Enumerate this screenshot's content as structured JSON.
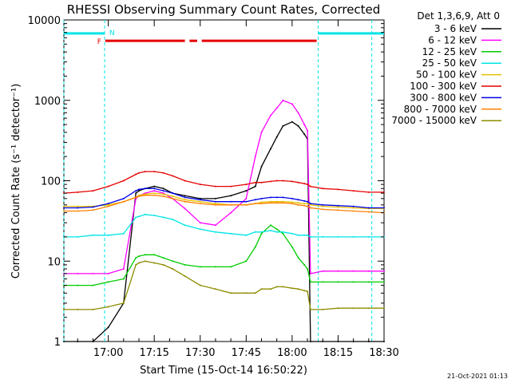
{
  "chart_data": {
    "type": "line",
    "title": "RHESSI Observing Summary Count Rates, Corrected",
    "xlabel": "Start Time (15-Oct-14 16:50:22)",
    "ylabel": "Corrected Count Rate (s⁻¹ detector⁻¹)",
    "x_ticks": [
      "17:00",
      "17:15",
      "17:30",
      "17:45",
      "18:00",
      "18:15",
      "18:30"
    ],
    "x_tick_minutes": [
      10,
      25,
      40,
      55,
      70,
      85,
      100
    ],
    "xlim_minutes": [
      -4.5,
      100
    ],
    "y_ticks": [
      "1",
      "10",
      "100",
      "1000",
      "10000"
    ],
    "y_tick_values": [
      1,
      10,
      100,
      1000,
      10000
    ],
    "ylim": [
      1,
      10000
    ],
    "y_scale": "log",
    "legend_header": "Det 1,3,6,9, Att 0",
    "legend_position": "top-right",
    "x": [
      -4.5,
      0,
      5,
      10,
      15,
      19,
      20,
      22,
      25,
      28,
      31,
      35,
      40,
      45,
      50,
      55,
      58,
      60,
      63,
      65,
      67,
      70,
      72,
      74,
      75,
      76,
      80,
      85,
      90,
      95,
      100
    ],
    "series": [
      {
        "name": "3 - 6 keV",
        "color": "#000000",
        "values": [
          1,
          1,
          1,
          1.5,
          3,
          70,
          75,
          80,
          85,
          80,
          70,
          65,
          60,
          60,
          65,
          75,
          85,
          150,
          250,
          350,
          480,
          540,
          480,
          380,
          330,
          1,
          1,
          1,
          1,
          1,
          1
        ]
      },
      {
        "name": "6 - 12 keV",
        "color": "#ff00ff",
        "values": [
          7,
          7,
          7,
          7,
          8,
          60,
          65,
          70,
          75,
          70,
          60,
          45,
          30,
          28,
          40,
          60,
          200,
          400,
          650,
          800,
          1000,
          900,
          700,
          500,
          420,
          7,
          7.5,
          7.5,
          7.5,
          7.5,
          7.5
        ]
      },
      {
        "name": "12 - 25 keV",
        "color": "#00cc00",
        "values": [
          5,
          5,
          5,
          5.5,
          6,
          11,
          11.5,
          12,
          12,
          11,
          10,
          9,
          8.5,
          8.5,
          8.5,
          10,
          15,
          22,
          28,
          25,
          22,
          15,
          11,
          9,
          8,
          5.5,
          5.5,
          5.5,
          5.5,
          5.5,
          5.5
        ]
      },
      {
        "name": "25 - 50 keV",
        "color": "#00e5e5",
        "values": [
          20,
          20,
          21,
          21,
          22,
          35,
          36,
          38,
          37,
          35,
          33,
          28,
          25,
          23,
          22,
          21,
          23,
          23,
          24,
          23,
          23,
          22,
          21,
          21,
          21,
          20,
          20,
          20,
          20,
          20,
          20
        ]
      },
      {
        "name": "50 - 100 keV",
        "color": "#e5c000",
        "values": [
          48,
          48,
          48,
          50,
          55,
          62,
          66,
          68,
          70,
          68,
          64,
          58,
          55,
          52,
          50,
          50,
          52,
          54,
          55,
          55,
          55,
          54,
          53,
          52,
          52,
          50,
          48,
          47,
          46,
          45,
          45
        ]
      },
      {
        "name": "100 - 300 keV",
        "color": "#e50000",
        "values": [
          70,
          72,
          75,
          85,
          100,
          120,
          125,
          130,
          130,
          125,
          115,
          100,
          90,
          85,
          85,
          90,
          95,
          95,
          98,
          100,
          100,
          98,
          95,
          92,
          90,
          85,
          80,
          78,
          75,
          72,
          72
        ]
      },
      {
        "name": "300 - 800 keV",
        "color": "#0000e5",
        "values": [
          46,
          46,
          47,
          52,
          60,
          75,
          78,
          80,
          80,
          75,
          70,
          62,
          58,
          55,
          55,
          55,
          58,
          60,
          62,
          62,
          62,
          60,
          58,
          56,
          55,
          52,
          50,
          49,
          48,
          46,
          46
        ]
      },
      {
        "name": "800 - 7000 keV",
        "color": "#ff8000",
        "values": [
          42,
          42,
          43,
          48,
          55,
          62,
          64,
          66,
          66,
          64,
          60,
          55,
          52,
          50,
          50,
          50,
          52,
          52,
          53,
          53,
          53,
          52,
          50,
          49,
          48,
          46,
          44,
          43,
          42,
          41,
          40
        ]
      },
      {
        "name": "7000 - 15000 keV",
        "color": "#8c8c00",
        "values": [
          2.5,
          2.5,
          2.5,
          2.7,
          3,
          9,
          9.5,
          10,
          9.5,
          9,
          8,
          6.5,
          5,
          4.5,
          4,
          4,
          4,
          4.5,
          4.5,
          4.8,
          4.8,
          4.6,
          4.5,
          4.3,
          4.2,
          2.5,
          2.5,
          2.6,
          2.6,
          2.6,
          2.6
        ]
      }
    ],
    "annotations": {
      "night_label": "N",
      "flare_label": "F",
      "night_intervals_minutes": [
        [
          -4.5,
          8.8
        ],
        [
          78.5,
          100
        ]
      ],
      "flare_intervals_minutes": [
        [
          9,
          35
        ],
        [
          36.5,
          39
        ],
        [
          40.5,
          78
        ]
      ],
      "boundary_lines_minutes": [
        -4.5,
        8.8,
        78.5,
        96
      ]
    },
    "grid": false
  },
  "footer": {
    "date_stamp": "21-Oct-2021 01:13"
  }
}
